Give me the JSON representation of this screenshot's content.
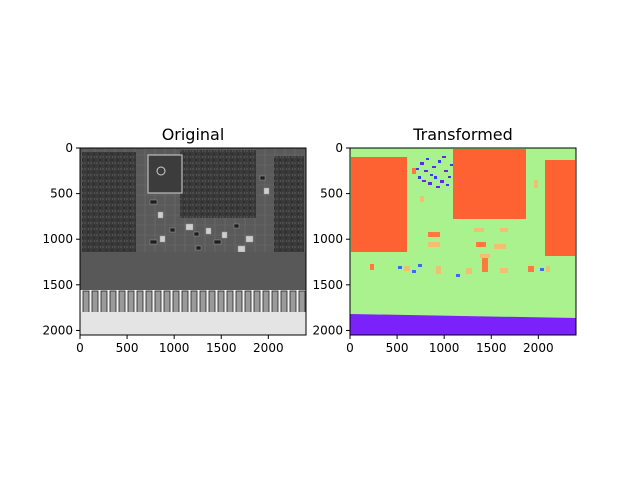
{
  "chart_data": [
    {
      "type": "heatmap",
      "title": "Original",
      "image_kind": "grayscale circuit board photograph",
      "xlim": [
        0,
        2400
      ],
      "ylim": [
        2050,
        0
      ],
      "xticks": [
        0,
        500,
        1000,
        1500,
        2000
      ],
      "yticks": [
        0,
        500,
        1000,
        1500,
        2000
      ],
      "grid": false
    },
    {
      "type": "heatmap",
      "title": "Transformed",
      "image_kind": "rainbow colormap segmentation",
      "xlim": [
        0,
        2400
      ],
      "ylim": [
        2050,
        0
      ],
      "xticks": [
        0,
        500,
        1000,
        1500,
        2000
      ],
      "yticks": [
        0,
        500,
        1000,
        1500,
        2000
      ],
      "grid": false,
      "colors": {
        "background": "#aaf28e",
        "large_regions": "#ff6232",
        "bottom_band": "#7b22fb",
        "small_components": "#f0c070",
        "noise_blue": "#3a6cf0"
      }
    }
  ]
}
